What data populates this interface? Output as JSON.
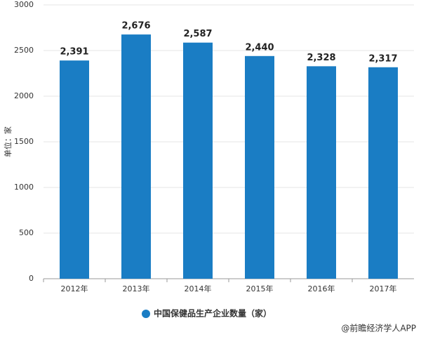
{
  "chart_data": {
    "type": "bar",
    "y_axis_label": "单位：家",
    "categories": [
      "2012年",
      "2013年",
      "2014年",
      "2015年",
      "2016年",
      "2017年"
    ],
    "series": [
      {
        "name": "中国保健品生产企业数量（家）",
        "color": "#1a7dc4",
        "values": [
          2391,
          2676,
          2587,
          2440,
          2328,
          2317
        ],
        "value_labels": [
          "2,391",
          "2,676",
          "2,587",
          "2,440",
          "2,328",
          "2,317"
        ]
      }
    ],
    "ylim": [
      0,
      3000
    ],
    "yticks": [
      0,
      500,
      1000,
      1500,
      2000,
      2500,
      3000
    ],
    "grid": true,
    "legend": "bottom",
    "source": "@前瞻经济学人APP"
  }
}
